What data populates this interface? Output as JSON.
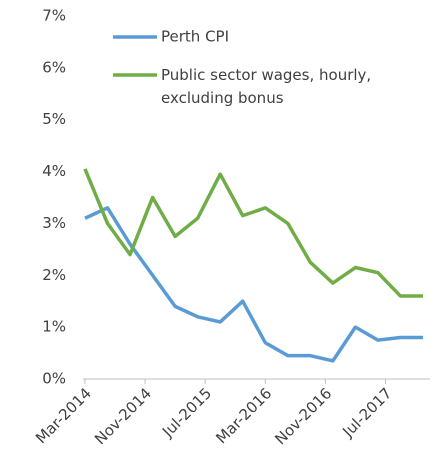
{
  "chart_data": {
    "type": "line",
    "x": [
      "Mar-2014",
      "Jun-2014",
      "Sep-2014",
      "Dec-2014",
      "Mar-2015",
      "Jun-2015",
      "Sep-2015",
      "Dec-2015",
      "Mar-2016",
      "Jun-2016",
      "Sep-2016",
      "Dec-2016",
      "Mar-2017",
      "Jun-2017",
      "Sep-2017",
      "Dec-2017"
    ],
    "series": [
      {
        "name": "Perth CPI",
        "color": "#5b9bd5",
        "values": [
          3.1,
          3.3,
          2.6,
          2.0,
          1.4,
          1.2,
          1.1,
          1.5,
          0.7,
          0.45,
          0.45,
          0.35,
          1.0,
          0.75,
          0.8,
          0.8
        ]
      },
      {
        "name": "Public sector wages, hourly, excluding bonus",
        "color": "#70ad47",
        "values": [
          4.05,
          3.0,
          2.4,
          3.5,
          2.75,
          3.1,
          3.95,
          3.15,
          3.3,
          3.0,
          2.25,
          1.85,
          2.15,
          2.05,
          1.6,
          1.6
        ]
      }
    ],
    "xlim": [
      "Mar-2014",
      "Dec-2017"
    ],
    "xticks": [
      "Mar-2014",
      "Nov-2014",
      "Jul-2015",
      "Mar-2016",
      "Nov-2016",
      "Jul-2017"
    ],
    "ylim": [
      0,
      7
    ],
    "yticks": [
      {
        "value": 0,
        "label": "0%"
      },
      {
        "value": 1,
        "label": "1%"
      },
      {
        "value": 2,
        "label": "2%"
      },
      {
        "value": 3,
        "label": "3%"
      },
      {
        "value": 4,
        "label": "4%"
      },
      {
        "value": 5,
        "label": "5%"
      },
      {
        "value": 6,
        "label": "6%"
      },
      {
        "value": 7,
        "label": "7%"
      }
    ],
    "grid": false,
    "legend": "top-left"
  }
}
